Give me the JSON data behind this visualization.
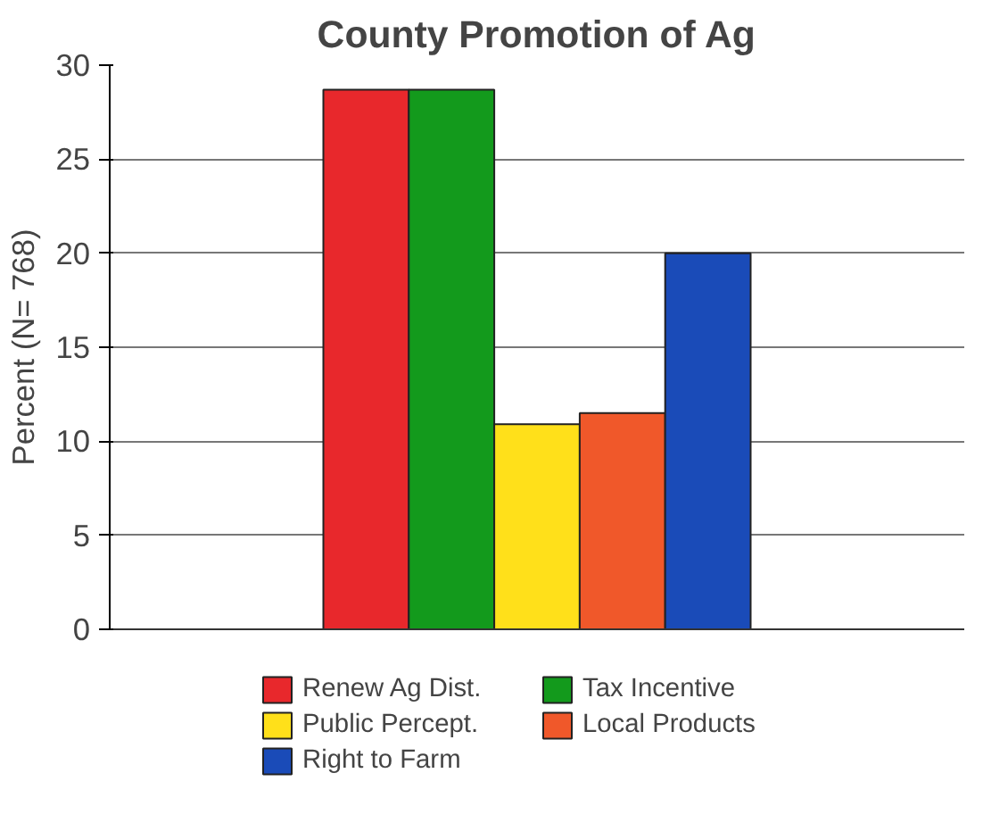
{
  "chart_data": {
    "type": "bar",
    "title": "County Promotion of Ag",
    "ylabel": "Percent (N= 768)",
    "categories": [
      null
    ],
    "series": [
      {
        "name": "Renew Ag Dist.",
        "color": "#e8282c",
        "values": [
          28.7
        ]
      },
      {
        "name": "Tax Incentive",
        "color": "#139a1c",
        "values": [
          28.7
        ]
      },
      {
        "name": "Public Percept.",
        "color": "#ffe01a",
        "values": [
          10.9
        ]
      },
      {
        "name": "Local Products",
        "color": "#f0582a",
        "values": [
          11.5
        ]
      },
      {
        "name": "Right to Farm",
        "color": "#1a4bb8",
        "values": [
          20
        ]
      }
    ],
    "ylim": [
      0,
      30
    ],
    "yticks": [
      0,
      5,
      10,
      15,
      20,
      25,
      30
    ],
    "grid": "y",
    "legend": "bottom",
    "tick_labels": "y"
  }
}
